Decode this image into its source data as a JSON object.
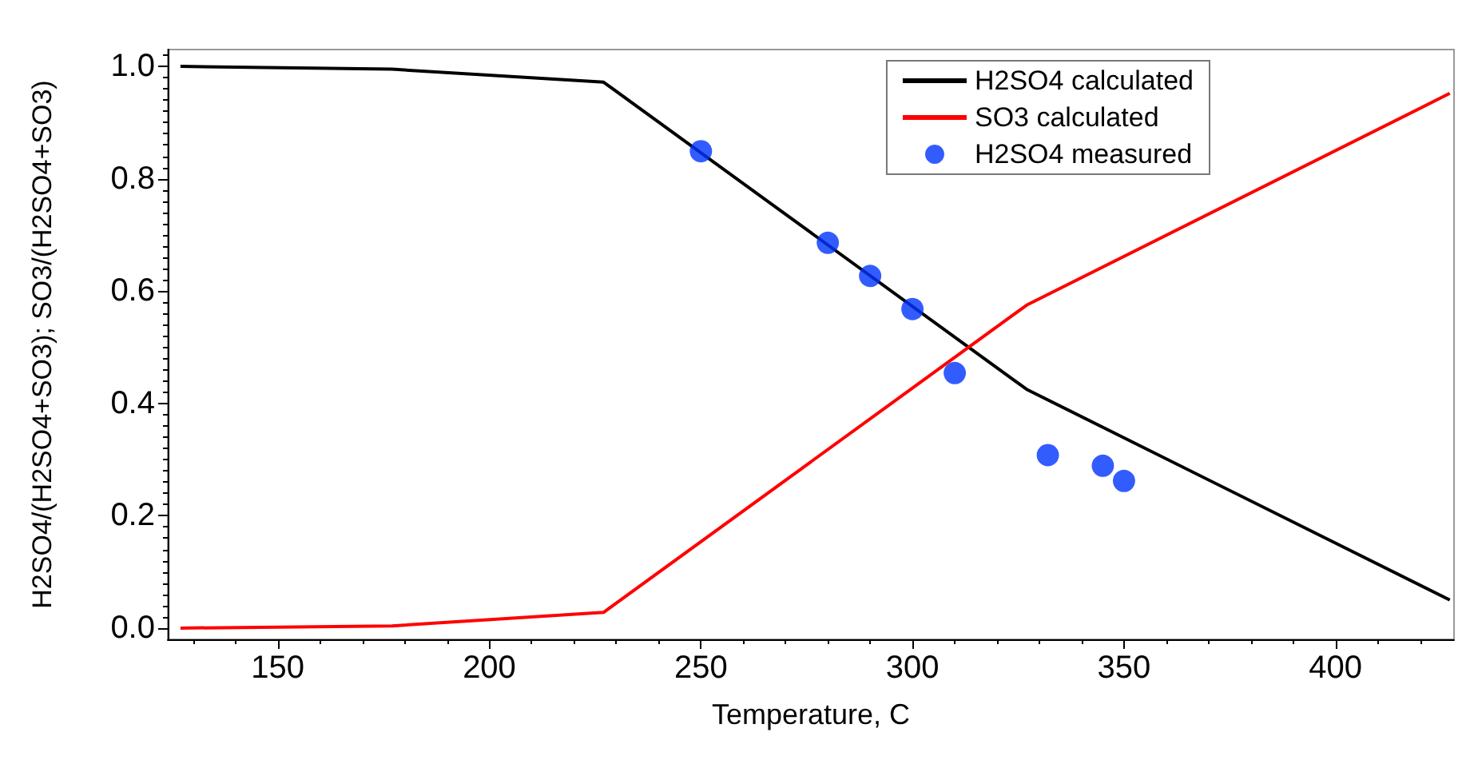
{
  "chart_data": {
    "type": "line",
    "xlabel": "Temperature, C",
    "ylabel": "H2SO4/(H2SO4+SO3); SO3/(H2SO4+SO3)",
    "xlim": [
      124,
      428
    ],
    "xticks": [
      150,
      200,
      250,
      300,
      350,
      400
    ],
    "ylim": [
      -0.02,
      1.03
    ],
    "yticks": [
      {
        "value": 0,
        "label": "0.0"
      },
      0.2,
      0.4,
      0.6,
      0.8,
      {
        "value": 1,
        "label": "1.0"
      }
    ],
    "grid": false,
    "legend": "top right",
    "series": [
      {
        "name": "H2SO4 calculated",
        "color": "#000000",
        "marker": "none",
        "x": [
          127,
          177,
          227,
          327,
          427
        ],
        "values": [
          1.0,
          0.995,
          0.972,
          0.425,
          0.05
        ]
      },
      {
        "name": "SO3 calculated",
        "color": "#ff0000",
        "marker": "none",
        "x": [
          127,
          177,
          227,
          327,
          427
        ],
        "values": [
          0.0,
          0.004,
          0.028,
          0.575,
          0.952
        ]
      },
      {
        "name": "H2SO4 measured",
        "type": "scatter",
        "color": "#0033ff",
        "marker": "circle",
        "x": [
          250,
          280,
          290,
          300,
          310,
          332,
          345,
          350
        ],
        "values": [
          0.849,
          0.686,
          0.627,
          0.568,
          0.454,
          0.308,
          0.289,
          0.262
        ]
      }
    ]
  }
}
